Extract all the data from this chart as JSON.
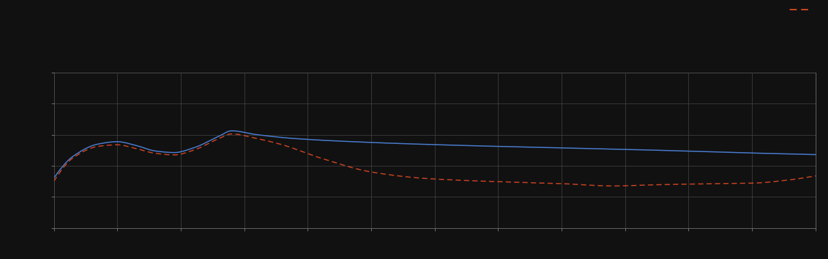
{
  "background_color": "#111111",
  "plot_bg_color": "#111111",
  "grid_color": "#444444",
  "line1_color": "#4a7fd4",
  "line2_color": "#cc4422",
  "xlim": [
    0,
    120
  ],
  "ylim": [
    0,
    10
  ],
  "figsize": [
    12.09,
    3.78
  ],
  "dpi": 100,
  "n_xticks": 13,
  "n_yticks": 6,
  "legend_above": true
}
